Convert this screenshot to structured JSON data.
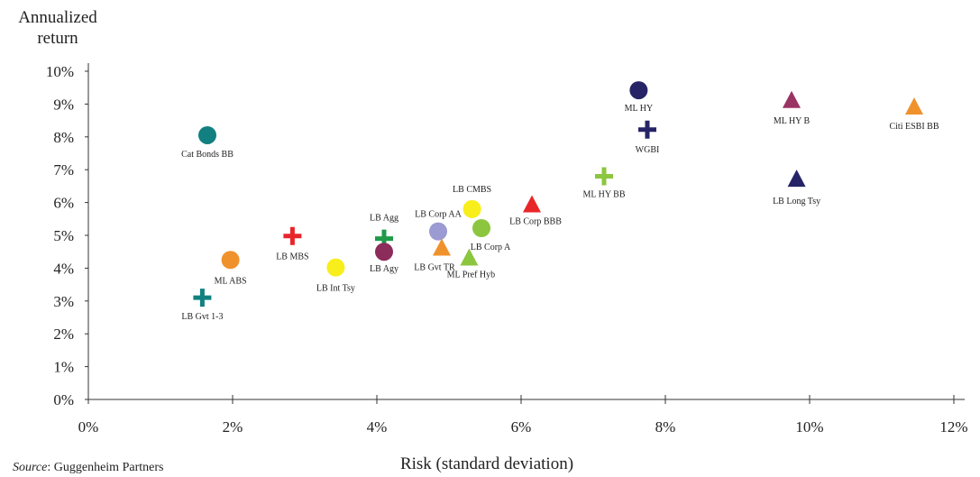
{
  "chart_data": {
    "type": "scatter",
    "ylabel_line1": "Annualized",
    "ylabel_line2": "return",
    "xlabel": "Risk (standard deviation)",
    "xlim": [
      0,
      12
    ],
    "ylim": [
      0,
      10
    ],
    "x_ticks": [
      "0%",
      "2%",
      "4%",
      "6%",
      "8%",
      "10%",
      "12%"
    ],
    "y_ticks": [
      "0%",
      "1%",
      "2%",
      "3%",
      "4%",
      "5%",
      "6%",
      "7%",
      "8%",
      "9%",
      "10%"
    ],
    "grid": false,
    "points": [
      {
        "label": "Cat Bonds BB",
        "x": 1.65,
        "y": 8.05,
        "marker": "circle",
        "color": "#128080"
      },
      {
        "label": "ML ABS",
        "x": 1.97,
        "y": 4.25,
        "marker": "circle",
        "color": "#F0922C"
      },
      {
        "label": "LB Gvt 1-3",
        "x": 1.58,
        "y": 3.1,
        "marker": "cross",
        "color": "#128080"
      },
      {
        "label": "LB MBS",
        "x": 2.83,
        "y": 4.98,
        "marker": "cross",
        "color": "#E8262A"
      },
      {
        "label": "LB Int Tsy",
        "x": 3.43,
        "y": 4.02,
        "marker": "circle",
        "color": "#F8EE1C"
      },
      {
        "label": "LB Agg",
        "x": 4.1,
        "y": 4.9,
        "marker": "cross",
        "color": "#1F9A48"
      },
      {
        "label": "LB Agy",
        "x": 4.1,
        "y": 4.5,
        "marker": "circle",
        "color": "#8C2C5A"
      },
      {
        "label": "LB Corp AA",
        "x": 4.85,
        "y": 5.12,
        "marker": "circle",
        "color": "#9B9AD2"
      },
      {
        "label": "LB Gvt TR",
        "x": 4.9,
        "y": 4.6,
        "marker": "triangle",
        "color": "#F0922C"
      },
      {
        "label": "LB CMBS",
        "x": 5.32,
        "y": 5.8,
        "marker": "circle",
        "color": "#F8EE1C"
      },
      {
        "label": "LB Corp A",
        "x": 5.45,
        "y": 5.22,
        "marker": "circle",
        "color": "#8CC63F"
      },
      {
        "label": "ML Pref Hyb",
        "x": 5.28,
        "y": 4.3,
        "marker": "triangle",
        "color": "#8CC63F"
      },
      {
        "label": "LB Corp BBB",
        "x": 6.15,
        "y": 5.92,
        "marker": "triangle",
        "color": "#E8262A"
      },
      {
        "label": "ML HY BB",
        "x": 7.15,
        "y": 6.8,
        "marker": "cross",
        "color": "#8CC63F"
      },
      {
        "label": "ML HY",
        "x": 7.63,
        "y": 9.42,
        "marker": "circle",
        "color": "#262466"
      },
      {
        "label": "WGBI",
        "x": 7.75,
        "y": 8.22,
        "marker": "cross",
        "color": "#262466"
      },
      {
        "label": "ML HY B",
        "x": 9.75,
        "y": 9.1,
        "marker": "triangle",
        "color": "#9A3463"
      },
      {
        "label": "LB Long Tsy",
        "x": 9.82,
        "y": 6.7,
        "marker": "triangle",
        "color": "#262466"
      },
      {
        "label": "Citi ESBI BB",
        "x": 11.45,
        "y": 8.9,
        "marker": "triangle",
        "color": "#F0922C"
      }
    ]
  },
  "source": {
    "prefix": "Source",
    "text": ": Guggenheim Partners"
  }
}
